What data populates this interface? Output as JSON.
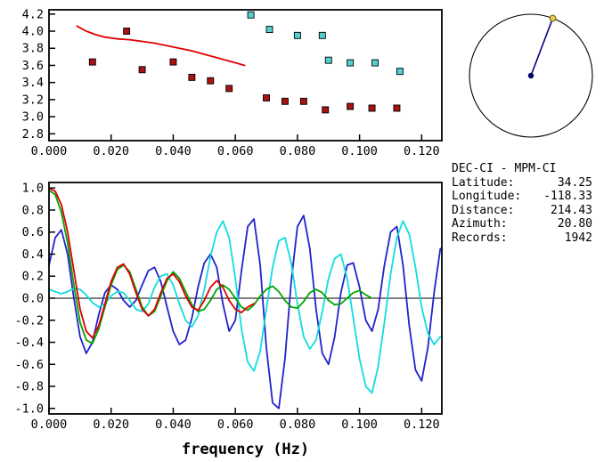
{
  "info_panel": {
    "title": "DEC-CI - MPM-CI",
    "fields": [
      {
        "label": "Latitude:",
        "value": "34.25"
      },
      {
        "label": "Longitude:",
        "value": "-118.33"
      },
      {
        "label": "Distance:",
        "value": "214.43"
      },
      {
        "label": "Azimuth:",
        "value": "20.80"
      },
      {
        "label": "Records:",
        "value": "1942"
      }
    ]
  },
  "azimuth_dial": {
    "azimuth_deg": 20.8,
    "circle_color": "#000000",
    "line_color": "#000080",
    "center_dot_color": "#000066",
    "end_dot_color": "#e6c84b"
  },
  "chart_data": [
    {
      "type": "scatter",
      "title": "",
      "xlabel": "",
      "ylabel": "",
      "grid": false,
      "xlim": [
        0,
        0.1265
      ],
      "ylim": [
        2.72,
        4.25
      ],
      "xticks": [
        0.0,
        0.02,
        0.04,
        0.06,
        0.08,
        0.1,
        0.12
      ],
      "xtick_labels": [
        "0.000",
        "0.020",
        "0.040",
        "0.060",
        "0.080",
        "0.100",
        "0.120"
      ],
      "yticks": [
        2.8,
        3.0,
        3.2,
        3.4,
        3.6,
        3.8,
        4.0,
        4.2
      ],
      "ytick_labels": [
        "2.8",
        "3.0",
        "3.2",
        "3.4",
        "3.6",
        "3.8",
        "4.0",
        "4.2"
      ],
      "series": [
        {
          "name": "reference-dispersion-curve",
          "type": "line",
          "color": "#dd0000",
          "points": [
            [
              0.009,
              4.06
            ],
            [
              0.012,
              4.0
            ],
            [
              0.015,
              3.96
            ],
            [
              0.018,
              3.93
            ],
            [
              0.022,
              3.91
            ],
            [
              0.026,
              3.9
            ],
            [
              0.03,
              3.88
            ],
            [
              0.034,
              3.86
            ],
            [
              0.038,
              3.83
            ],
            [
              0.042,
              3.8
            ],
            [
              0.046,
              3.77
            ],
            [
              0.05,
              3.73
            ],
            [
              0.054,
              3.69
            ],
            [
              0.058,
              3.65
            ],
            [
              0.061,
              3.62
            ],
            [
              0.063,
              3.6
            ]
          ]
        },
        {
          "name": "velocity-picks-red",
          "type": "scatter",
          "marker": "square",
          "color": "#aa1111",
          "points": [
            [
              0.014,
              3.64
            ],
            [
              0.025,
              4.0
            ],
            [
              0.03,
              3.55
            ],
            [
              0.04,
              3.64
            ],
            [
              0.046,
              3.46
            ],
            [
              0.052,
              3.42
            ],
            [
              0.058,
              3.33
            ],
            [
              0.07,
              3.22
            ],
            [
              0.076,
              3.18
            ],
            [
              0.082,
              3.18
            ],
            [
              0.089,
              3.08
            ],
            [
              0.097,
              3.12
            ],
            [
              0.104,
              3.1
            ],
            [
              0.112,
              3.1
            ]
          ]
        },
        {
          "name": "velocity-picks-cyan",
          "type": "scatter",
          "marker": "square",
          "color": "#53cfcf",
          "points": [
            [
              0.065,
              4.19
            ],
            [
              0.071,
              4.02
            ],
            [
              0.08,
              3.95
            ],
            [
              0.088,
              3.95
            ],
            [
              0.09,
              3.66
            ],
            [
              0.097,
              3.63
            ],
            [
              0.105,
              3.63
            ],
            [
              0.113,
              3.53
            ]
          ]
        }
      ]
    },
    {
      "type": "line",
      "title": "",
      "xlabel": "frequency (Hz)",
      "ylabel": "",
      "grid": false,
      "zero_line": true,
      "xlim": [
        0,
        0.1265
      ],
      "ylim": [
        -1.05,
        1.05
      ],
      "xticks": [
        0.0,
        0.02,
        0.04,
        0.06,
        0.08,
        0.1,
        0.12
      ],
      "xtick_labels": [
        "0.000",
        "0.020",
        "0.040",
        "0.060",
        "0.080",
        "0.100",
        "0.120"
      ],
      "yticks": [
        -1.0,
        -0.8,
        -0.6,
        -0.4,
        -0.2,
        0.0,
        0.2,
        0.4,
        0.6,
        0.8,
        1.0
      ],
      "ytick_labels": [
        "-1.0",
        "-0.8",
        "-0.6",
        "-0.4",
        "-0.2",
        "0.0",
        "0.2",
        "0.4",
        "0.6",
        "0.8",
        "1.0"
      ],
      "series": [
        {
          "name": "waveform-blue",
          "type": "line",
          "color": "#2222cc",
          "x0": 0,
          "dx": 0.002,
          "y": [
            0.3,
            0.55,
            0.62,
            0.4,
            0.0,
            -0.35,
            -0.5,
            -0.4,
            -0.15,
            0.05,
            0.12,
            0.08,
            -0.02,
            -0.08,
            -0.02,
            0.12,
            0.25,
            0.28,
            0.15,
            -0.08,
            -0.3,
            -0.42,
            -0.38,
            -0.18,
            0.1,
            0.32,
            0.4,
            0.28,
            -0.05,
            -0.3,
            -0.2,
            0.25,
            0.65,
            0.72,
            0.3,
            -0.45,
            -0.95,
            -1.0,
            -0.55,
            0.15,
            0.65,
            0.75,
            0.45,
            -0.1,
            -0.5,
            -0.6,
            -0.35,
            0.05,
            0.3,
            0.32,
            0.1,
            -0.2,
            -0.3,
            -0.1,
            0.3,
            0.6,
            0.65,
            0.3,
            -0.25,
            -0.65,
            -0.75,
            -0.45,
            0.05,
            0.45
          ]
        },
        {
          "name": "waveform-cyan",
          "type": "line",
          "color": "#11dddd",
          "x0": 0,
          "dx": 0.002,
          "y": [
            0.08,
            0.06,
            0.04,
            0.06,
            0.09,
            0.08,
            0.03,
            -0.04,
            -0.08,
            -0.05,
            0.02,
            0.06,
            0.05,
            -0.02,
            -0.1,
            -0.12,
            -0.05,
            0.1,
            0.2,
            0.22,
            0.12,
            -0.05,
            -0.2,
            -0.26,
            -0.16,
            0.08,
            0.38,
            0.6,
            0.7,
            0.55,
            0.18,
            -0.28,
            -0.58,
            -0.66,
            -0.48,
            -0.1,
            0.28,
            0.52,
            0.55,
            0.32,
            -0.05,
            -0.35,
            -0.46,
            -0.38,
            -0.12,
            0.18,
            0.36,
            0.4,
            0.18,
            -0.18,
            -0.55,
            -0.8,
            -0.86,
            -0.62,
            -0.22,
            0.22,
            0.55,
            0.7,
            0.58,
            0.28,
            -0.08,
            -0.32,
            -0.42,
            -0.35
          ]
        },
        {
          "name": "waveform-green",
          "type": "line",
          "color": "#00a400",
          "x0": 0,
          "dx": 0.002,
          "y": [
            0.98,
            0.94,
            0.78,
            0.5,
            0.12,
            -0.22,
            -0.38,
            -0.41,
            -0.28,
            -0.08,
            0.12,
            0.26,
            0.3,
            0.24,
            0.08,
            -0.08,
            -0.16,
            -0.12,
            0.02,
            0.16,
            0.24,
            0.18,
            0.06,
            -0.06,
            -0.12,
            -0.1,
            -0.02,
            0.08,
            0.12,
            0.08,
            0.0,
            -0.08,
            -0.11,
            -0.06,
            0.02,
            0.08,
            0.11,
            0.06,
            -0.02,
            -0.08,
            -0.09,
            -0.03,
            0.05,
            0.08,
            0.05,
            -0.02,
            -0.06,
            -0.05,
            0.0,
            0.05,
            0.07,
            0.03,
            0.0
          ]
        },
        {
          "name": "waveform-red",
          "type": "line",
          "color": "#dd0000",
          "x0": 0,
          "dx": 0.002,
          "y": [
            1.0,
            0.97,
            0.85,
            0.6,
            0.25,
            -0.1,
            -0.3,
            -0.36,
            -0.25,
            -0.05,
            0.15,
            0.28,
            0.31,
            0.22,
            0.05,
            -0.1,
            -0.16,
            -0.1,
            0.05,
            0.18,
            0.22,
            0.15,
            0.02,
            -0.08,
            -0.11,
            -0.02,
            0.1,
            0.16,
            0.1,
            -0.02,
            -0.1,
            -0.13,
            -0.08,
            -0.05
          ]
        }
      ]
    }
  ]
}
